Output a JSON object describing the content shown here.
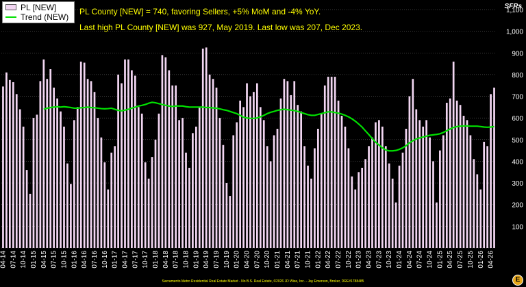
{
  "chart_data": {
    "type": "bar",
    "ylabel": "SFRs",
    "ylim": [
      0,
      1100
    ],
    "yticks": [
      0,
      100,
      200,
      300,
      400,
      500,
      600,
      700,
      800,
      900,
      1000,
      1100
    ],
    "ytick_labels": [
      "",
      "100",
      "200",
      "300",
      "400",
      "500",
      "600",
      "700",
      "800",
      "900",
      "1,000",
      "1,100"
    ],
    "x_tick_labels": [
      "04-14",
      "07-14",
      "10-14",
      "01-15",
      "04-15",
      "07-15",
      "10-15",
      "01-16",
      "04-16",
      "07-16",
      "10-16",
      "01-17",
      "04-17",
      "07-17",
      "10-17",
      "01-18",
      "04-18",
      "07-18",
      "10-18",
      "01-19",
      "04-19",
      "07-19",
      "10-19",
      "01-20",
      "04-20",
      "07-20",
      "10-20",
      "01-21",
      "04-21",
      "07-21",
      "10-21",
      "01-22",
      "04-22",
      "07-22",
      "10-22",
      "01-23",
      "04-23",
      "07-23",
      "10-23",
      "01-24",
      "04-24",
      "07-24",
      "10-24",
      "01-25",
      "04-25",
      "07-25",
      "10-25",
      "01-26",
      "04-26"
    ],
    "grid": true,
    "legend_position": "top-left",
    "series": [
      {
        "name": "PL [NEW]",
        "type": "bar",
        "color": "#f2d6f2",
        "values": [
          745,
          810,
          775,
          765,
          710,
          640,
          560,
          360,
          250,
          600,
          615,
          770,
          870,
          780,
          825,
          740,
          690,
          630,
          560,
          390,
          295,
          590,
          650,
          860,
          855,
          780,
          770,
          720,
          600,
          510,
          395,
          270,
          440,
          470,
          800,
          760,
          870,
          870,
          820,
          795,
          650,
          620,
          395,
          320,
          420,
          500,
          620,
          890,
          880,
          820,
          750,
          750,
          590,
          600,
          440,
          370,
          530,
          560,
          650,
          920,
          925,
          800,
          780,
          740,
          600,
          475,
          300,
          240,
          520,
          580,
          680,
          650,
          760,
          700,
          720,
          760,
          650,
          590,
          470,
          400,
          520,
          550,
          690,
          780,
          770,
          705,
          770,
          660,
          630,
          470,
          380,
          320,
          460,
          550,
          620,
          750,
          790,
          790,
          790,
          680,
          610,
          560,
          460,
          330,
          270,
          350,
          370,
          410,
          470,
          510,
          580,
          590,
          560,
          470,
          390,
          320,
          210,
          380,
          440,
          550,
          700,
          780,
          640,
          590,
          560,
          590,
          510,
          400,
          210,
          450,
          520,
          670,
          690,
          860,
          680,
          660,
          610,
          590,
          520,
          410,
          340,
          270,
          490,
          470,
          710,
          740
        ]
      },
      {
        "name": "Trend (NEW)",
        "type": "line",
        "color": "#00e000",
        "values": [
          null,
          null,
          null,
          null,
          null,
          null,
          null,
          null,
          null,
          null,
          null,
          null,
          640,
          645,
          648,
          650,
          652,
          650,
          652,
          650,
          648,
          645,
          645,
          647,
          648,
          650,
          648,
          647,
          645,
          643,
          642,
          643,
          645,
          640,
          635,
          633,
          636,
          640,
          645,
          650,
          655,
          658,
          662,
          668,
          672,
          670,
          666,
          662,
          658,
          655,
          653,
          655,
          655,
          655,
          652,
          650,
          650,
          650,
          650,
          650,
          648,
          648,
          646,
          645,
          642,
          638,
          635,
          630,
          625,
          620,
          612,
          603,
          600,
          598,
          598,
          600,
          605,
          612,
          620,
          626,
          630,
          635,
          638,
          640,
          638,
          636,
          634,
          630,
          625,
          620,
          615,
          612,
          612,
          616,
          620,
          624,
          628,
          628,
          625,
          622,
          618,
          612,
          605,
          596,
          585,
          572,
          558,
          540,
          523,
          505,
          488,
          475,
          462,
          452,
          448,
          448,
          450,
          455,
          462,
          472,
          485,
          495,
          503,
          508,
          512,
          516,
          520,
          522,
          524,
          527,
          533,
          541,
          549,
          556,
          560,
          562,
          563,
          563,
          562,
          562,
          562,
          560,
          558,
          557,
          558,
          560
        ]
      }
    ],
    "annotations": [
      "PL County [NEW] = 740, favoring Sellers, +5% MoM and -4% YoY.",
      "Last high PL County [NEW] was 927, May 2019. Last low was 207, Dec 2023."
    ],
    "footer": "Sacramento Metro Residential Real Estate Market - No B.S. Real Estate, ©2026 JD Wise, Inc. - Jay Emerson, Broker, DRE#1788485"
  }
}
